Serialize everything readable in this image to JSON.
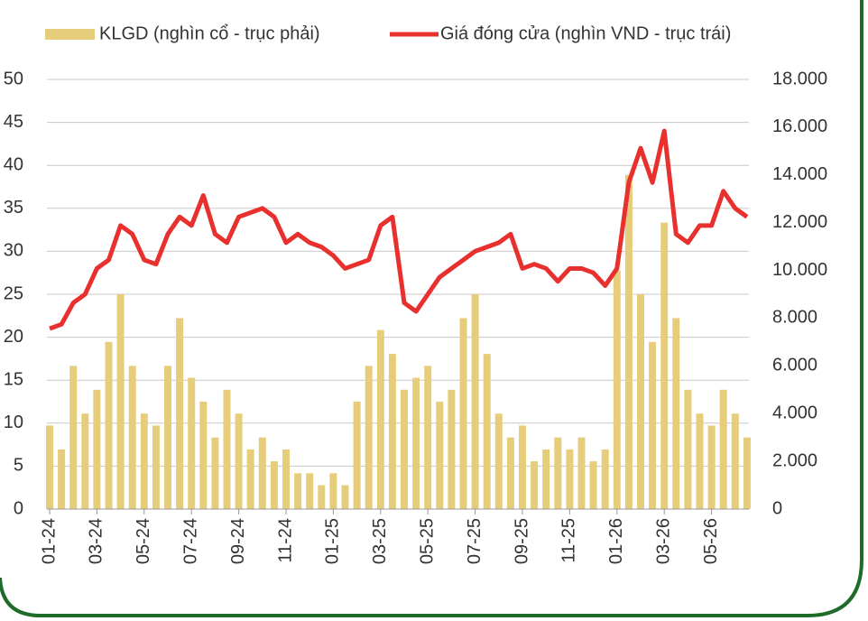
{
  "chart_data": {
    "type": "combo",
    "categories": [
      "01-24",
      null,
      null,
      null,
      "03-24",
      null,
      null,
      null,
      "05-24",
      null,
      null,
      null,
      "07-24",
      null,
      null,
      null,
      "09-24",
      null,
      null,
      null,
      "11-24",
      null,
      null,
      null,
      "01-25",
      null,
      null,
      null,
      "03-25",
      null,
      null,
      null,
      "05-25",
      null,
      null,
      null,
      "07-25",
      null,
      null,
      null,
      "09-25",
      null,
      null,
      null,
      "11-25",
      null,
      null,
      null,
      "01-26",
      null,
      null,
      null,
      "03-26",
      null,
      null,
      null,
      "05-26",
      null,
      null,
      null
    ],
    "series": [
      {
        "name": "KLGD (nghìn cổ - trục phải)",
        "type": "bar",
        "axis": "y2",
        "color": "#e6cd7c",
        "values": [
          3500,
          2500,
          6000,
          4000,
          5000,
          7000,
          9000,
          6000,
          4000,
          3500,
          6000,
          8000,
          5500,
          4500,
          3000,
          5000,
          4000,
          2500,
          3000,
          2000,
          2500,
          1500,
          1500,
          1000,
          1500,
          1000,
          4500,
          6000,
          7500,
          6500,
          5000,
          5500,
          6000,
          4500,
          5000,
          8000,
          9000,
          6500,
          4000,
          3000,
          3500,
          2000,
          2500,
          3000,
          2500,
          3000,
          2000,
          2500,
          10000,
          14000,
          9000,
          7000,
          12000,
          8000,
          5000,
          4000,
          3500,
          5000,
          4000,
          3000
        ]
      },
      {
        "name": "Giá đóng cửa (nghìn VND - trục trái)",
        "type": "line",
        "color": "#e8302e",
        "values": [
          21,
          21.5,
          24,
          25,
          28,
          29,
          33,
          32,
          29,
          28.5,
          32,
          34,
          33,
          36.5,
          32,
          31,
          34,
          34.5,
          35,
          34,
          31,
          32,
          31,
          30.5,
          29.5,
          28,
          28.5,
          29,
          33,
          34,
          24,
          23,
          25,
          27,
          28,
          29,
          30,
          30.5,
          31,
          32,
          28,
          28.5,
          28,
          26.5,
          28,
          28,
          27.5,
          26,
          28,
          38,
          42,
          38,
          44,
          32,
          31,
          33,
          33,
          37,
          35,
          34
        ]
      }
    ],
    "ylim": [
      0,
      50
    ],
    "yticks": [
      0,
      5,
      10,
      15,
      20,
      25,
      30,
      35,
      40,
      45,
      50
    ],
    "y2lim": [
      0,
      18000
    ],
    "y2ticks": [
      0,
      {
        "value": 2000,
        "label": "2.000"
      },
      {
        "value": 4000,
        "label": "4.000"
      },
      {
        "value": 6000,
        "label": "6.000"
      },
      {
        "value": 8000,
        "label": "8.000"
      },
      {
        "value": 10000,
        "label": "10.000"
      },
      {
        "value": 12000,
        "label": "12.000"
      },
      {
        "value": 14000,
        "label": "14.000"
      },
      {
        "value": 16000,
        "label": "16.000"
      },
      {
        "value": 18000,
        "label": "18.000"
      }
    ],
    "grid": true
  }
}
